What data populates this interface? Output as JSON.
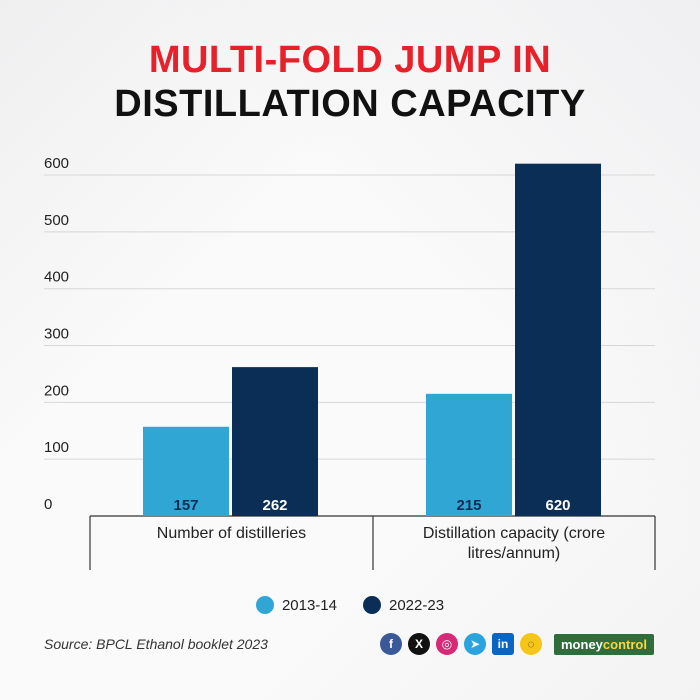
{
  "title": {
    "line1": "MULTI-FOLD JUMP IN",
    "line2": "DISTILLATION CAPACITY"
  },
  "colors": {
    "title_red": "#e8202a",
    "series_2013": "#2fa6d3",
    "series_2022": "#0a2e56",
    "grid": "#d7d7d7",
    "brand_green": "#2f6e3a"
  },
  "chart_data": {
    "type": "bar",
    "title": "MULTI-FOLD JUMP IN DISTILLATION CAPACITY",
    "categories": [
      "Number of distilleries",
      "Distillation capacity (crore litres/annum)"
    ],
    "category_lines": [
      [
        "Number of distilleries"
      ],
      [
        "Distillation capacity (crore",
        "litres/annum)"
      ]
    ],
    "series": [
      {
        "name": "2013-14",
        "values": [
          157,
          215
        ]
      },
      {
        "name": "2022-23",
        "values": [
          262,
          620
        ]
      }
    ],
    "yticks": [
      0,
      100,
      200,
      300,
      400,
      500,
      600
    ],
    "ylim": [
      0,
      630
    ],
    "grid": true,
    "legend_position": "bottom-center"
  },
  "legend": {
    "item1": "2013-14",
    "item2": "2022-23"
  },
  "source": "Source: BPCL Ethanol booklet 2023",
  "social": {
    "facebook": "f",
    "x": "X",
    "instagram": "◎",
    "telegram": "➤",
    "linkedin": "in",
    "snapchat": "◌"
  },
  "brand": {
    "part1": "money",
    "part2": "control"
  }
}
